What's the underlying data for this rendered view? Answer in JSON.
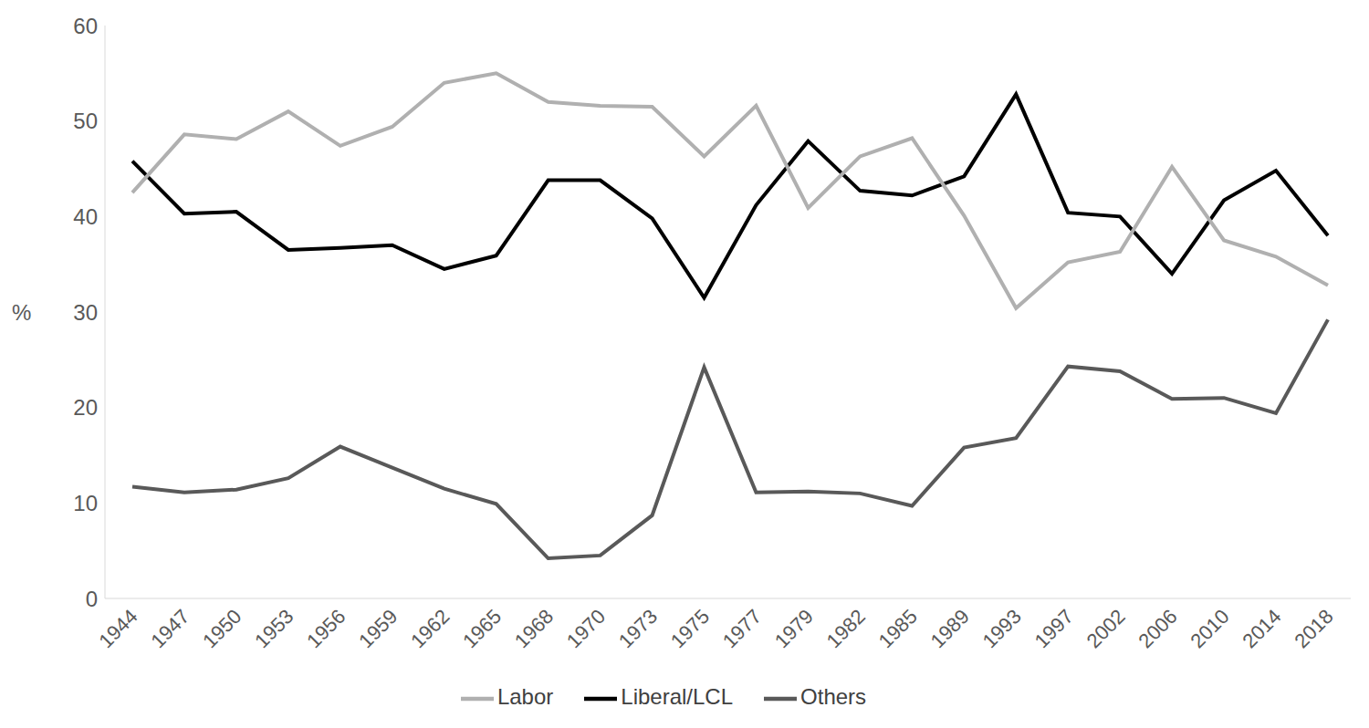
{
  "chart_data": {
    "type": "line",
    "y_label": "%",
    "categories": [
      "1944",
      "1947",
      "1950",
      "1953",
      "1956",
      "1959",
      "1962",
      "1965",
      "1968",
      "1970",
      "1973",
      "1975",
      "1977",
      "1979",
      "1982",
      "1985",
      "1989",
      "1993",
      "1997",
      "2002",
      "2006",
      "2010",
      "2014",
      "2018"
    ],
    "series": [
      {
        "name": "Liberal/LCL",
        "color": "#000000",
        "values": [
          45.8,
          40.3,
          40.5,
          36.5,
          36.7,
          37.0,
          34.5,
          35.9,
          43.8,
          43.8,
          39.8,
          31.5,
          41.2,
          47.9,
          42.7,
          42.2,
          44.2,
          52.8,
          40.4,
          40.0,
          34.0,
          41.7,
          44.8,
          38.0
        ]
      },
      {
        "name": "Labor",
        "color": "#b0b0b0",
        "values": [
          42.5,
          48.6,
          48.1,
          51.0,
          47.4,
          49.4,
          54.0,
          55.0,
          52.0,
          51.6,
          51.5,
          46.3,
          51.6,
          40.9,
          46.3,
          48.2,
          40.1,
          30.4,
          35.2,
          36.3,
          45.2,
          37.5,
          35.8,
          32.8
        ]
      },
      {
        "name": "Others",
        "color": "#595959",
        "values": [
          11.7,
          11.1,
          11.4,
          12.6,
          15.9,
          13.7,
          11.5,
          9.9,
          4.2,
          4.5,
          8.7,
          24.2,
          11.1,
          11.2,
          11.0,
          9.7,
          15.8,
          16.8,
          24.3,
          23.8,
          20.9,
          21.0,
          19.4,
          29.2
        ]
      }
    ],
    "ylim": [
      0,
      60
    ],
    "yticks": [
      0,
      10,
      20,
      30,
      40,
      50,
      60
    ],
    "grid": false,
    "legend": "bottom"
  }
}
